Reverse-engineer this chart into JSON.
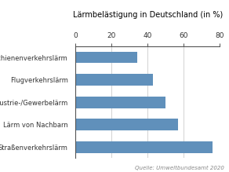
{
  "title": "Lärmbelästigung in Deutschland (in %)",
  "categories": [
    "Schienenverkehrslärm",
    "Flugverkehrslärm",
    "Industrie-/Gewerbelärm",
    "Lärm von Nachbarn",
    "Straßenverkehrslärm"
  ],
  "values": [
    34,
    43,
    50,
    57,
    76
  ],
  "bar_color": "#6090bb",
  "xlim": [
    0,
    80
  ],
  "xticks": [
    0,
    20,
    40,
    60,
    80
  ],
  "source_text": "Quelle: Umweltbundesamt 2020",
  "title_fontsize": 7.0,
  "label_fontsize": 6.0,
  "tick_fontsize": 6.5,
  "source_fontsize": 5.0,
  "background_color": "#ffffff",
  "bar_height": 0.52
}
